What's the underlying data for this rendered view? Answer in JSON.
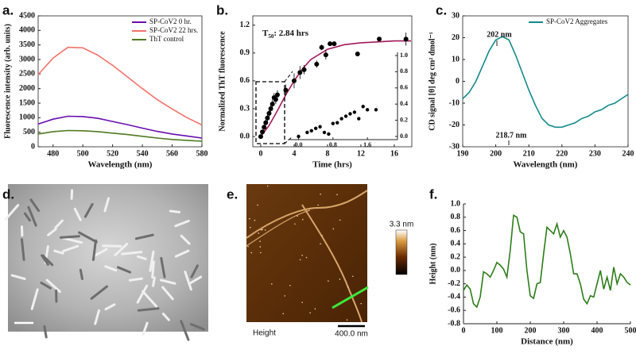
{
  "chart_data": [
    {
      "type": "line",
      "panel_label": "a.",
      "xlabel": "Wavelength (nm)",
      "ylabel": "Fluorescence intensity (arb. units)",
      "x": [
        470,
        480,
        490,
        500,
        510,
        520,
        530,
        540,
        550,
        560,
        570,
        580
      ],
      "xlim": [
        470,
        580
      ],
      "xticks": [
        480,
        500,
        520,
        540,
        560,
        580
      ],
      "ylim": [
        0,
        4500
      ],
      "yticks": [
        0,
        500,
        1000,
        1500,
        2000,
        2500,
        3000,
        3500,
        4000,
        4500
      ],
      "legend": "upper right",
      "series": [
        {
          "name": "SP-CoV2 0 hr.",
          "color": "#6a0dad",
          "values": [
            780,
            950,
            1050,
            1040,
            980,
            870,
            760,
            640,
            530,
            440,
            370,
            300
          ]
        },
        {
          "name": "SP-CoV2 22 hrs.",
          "color": "#f4726b",
          "values": [
            2480,
            3050,
            3420,
            3400,
            3150,
            2800,
            2400,
            2000,
            1620,
            1300,
            1000,
            750
          ]
        },
        {
          "name": "ThT control",
          "color": "#4f7a1f",
          "values": [
            440,
            520,
            560,
            550,
            520,
            470,
            420,
            360,
            300,
            250,
            220,
            190
          ]
        }
      ]
    },
    {
      "type": "scatter",
      "panel_label": "b.",
      "xlabel": "Time (hrs)",
      "ylabel": "Normalized ThT fluorescence",
      "annotation": {
        "text": "T",
        "subscript": "50",
        "rest": ": 2.84 hrs"
      },
      "xlim": [
        -0.95,
        18.1
      ],
      "xticks": [
        0,
        4,
        8,
        12,
        16
      ],
      "ylim": [
        -0.11,
        1.3
      ],
      "yticks": [
        {
          "value": 0,
          "label": "0.0"
        },
        0.3,
        0.6,
        0.9,
        1.2
      ],
      "points": {
        "color": "#000000",
        "x": [
          0,
          0.2,
          0.4,
          0.6,
          0.8,
          1.0,
          1.2,
          1.4,
          1.6,
          1.8,
          2.0,
          3.0,
          4.0,
          4.7,
          5.2,
          6.7,
          7.3,
          7.8,
          8.3,
          8.8,
          11.6,
          14.2,
          17.4
        ],
        "values": [
          0,
          0.05,
          0.1,
          0.15,
          0.2,
          0.25,
          0.3,
          0.35,
          0.42,
          0.4,
          0.45,
          0.5,
          0.6,
          0.69,
          0.72,
          0.78,
          0.96,
          0.88,
          1.0,
          1.0,
          0.89,
          1.05,
          1.05
        ],
        "errors": [
          0.02,
          0.02,
          0.03,
          0.03,
          0.04,
          0.04,
          0.04,
          0.05,
          0.05,
          0.05,
          0.05,
          0.06,
          0.08,
          0.07,
          0.05,
          0.04,
          0.03,
          0.05,
          0.02,
          0.02,
          0.01,
          0.02,
          0.07
        ]
      },
      "fit": {
        "color": "#a3195b",
        "x": [
          0,
          1,
          2,
          3,
          4,
          5,
          6,
          8,
          10,
          12,
          14,
          16,
          18
        ],
        "values": [
          0,
          0.12,
          0.28,
          0.45,
          0.6,
          0.73,
          0.83,
          0.94,
          0.99,
          1.01,
          1.02,
          1.03,
          1.03
        ]
      },
      "inset": {
        "xlim": [
          -0.25,
          2.3
        ],
        "xticks": [
          {
            "value": 0,
            "label": "0.0"
          },
          0.8,
          1.6
        ],
        "ylim": [
          0,
          1
        ],
        "yticks": [
          {
            "value": 0,
            "label": "0.0"
          },
          0.2,
          0.4,
          0.6,
          0.8,
          {
            "value": 1,
            "label": "1.0"
          }
        ],
        "x": [
          0,
          0.2,
          0.3,
          0.4,
          0.5,
          0.6,
          0.7,
          0.8,
          0.9,
          1.0,
          1.1,
          1.2,
          1.3,
          1.4,
          1.5,
          1.6,
          1.8
        ],
        "values": [
          0,
          0.05,
          0.07,
          0.1,
          0.12,
          0.05,
          0.03,
          0.16,
          0.17,
          0.22,
          0.25,
          0.28,
          0.3,
          0.22,
          0.37,
          0.33,
          0.33
        ]
      }
    },
    {
      "type": "line",
      "panel_label": "c.",
      "xlabel": "Wavelength (nm)",
      "ylabel": "CD signal [θ] deg cm² dmol⁻¹",
      "x": [
        190,
        192,
        194,
        196,
        198,
        200,
        202,
        204,
        206,
        208,
        210,
        212,
        214,
        216,
        218,
        220,
        222,
        224,
        226,
        228,
        230,
        232,
        234,
        236,
        238,
        240
      ],
      "xlim": [
        190,
        240
      ],
      "xticks": [
        190,
        200,
        210,
        220,
        230,
        240
      ],
      "ylim": [
        -30,
        30
      ],
      "yticks": [
        -30,
        -20,
        -10,
        0,
        10,
        20,
        30
      ],
      "legend": "upper right",
      "annotations": [
        "202 nm",
        "218.7 nm"
      ],
      "series": [
        {
          "name": "SP-CoV2 Aggregates",
          "color": "#138a8a",
          "values": [
            -8,
            -5,
            0,
            7,
            14,
            19,
            20.5,
            19,
            12,
            4,
            -4,
            -11,
            -17,
            -20,
            -21,
            -21,
            -20,
            -19,
            -17,
            -16,
            -14,
            -13,
            -11,
            -10,
            -8,
            -6
          ]
        }
      ]
    },
    {
      "type": "line",
      "panel_label": "f.",
      "xlabel": "Distance (nm)",
      "ylabel": "Height (nm)",
      "x": [
        0,
        10,
        20,
        30,
        40,
        50,
        60,
        70,
        80,
        90,
        100,
        110,
        120,
        130,
        140,
        150,
        160,
        170,
        180,
        190,
        200,
        210,
        220,
        230,
        240,
        250,
        260,
        270,
        280,
        290,
        300,
        310,
        320,
        330,
        340,
        350,
        360,
        370,
        380,
        390,
        400,
        410,
        420,
        430,
        440,
        450,
        460,
        470,
        480,
        490,
        500
      ],
      "xlim": [
        0,
        500
      ],
      "xticks": [
        0,
        100,
        200,
        300,
        400,
        500
      ],
      "ylim": [
        -0.8,
        1.0
      ],
      "yticks": [
        -0.8,
        -0.6,
        -0.4,
        -0.2,
        {
          "value": 0,
          "label": "0.0"
        },
        0.2,
        0.4,
        0.6,
        0.8,
        {
          "value": 1,
          "label": "1.0"
        }
      ],
      "series": [
        {
          "color": "#2e7d1a",
          "values": [
            -0.3,
            -0.22,
            -0.28,
            -0.5,
            -0.55,
            -0.4,
            -0.02,
            -0.05,
            -0.1,
            0,
            0.12,
            0.08,
            0.02,
            -0.1,
            0.3,
            0.83,
            0.8,
            0.58,
            0.55,
            0,
            -0.38,
            -0.42,
            -0.2,
            -0.18,
            0.25,
            0.65,
            0.6,
            0.55,
            0.7,
            0.5,
            0.6,
            0.5,
            0.25,
            -0.05,
            -0.05,
            -0.2,
            -0.43,
            -0.5,
            -0.38,
            -0.4,
            -0.2,
            0,
            -0.28,
            -0.1,
            -0.3,
            0.05,
            -0.2,
            -0.05,
            -0.1,
            -0.18,
            -0.22
          ]
        }
      ]
    }
  ],
  "images": [
    {
      "panel_label": "d."
    },
    {
      "panel_label": "e.",
      "colorbar_label": "3.3 nm",
      "channel": "Height",
      "scale_bar": "400.0 nm"
    }
  ]
}
